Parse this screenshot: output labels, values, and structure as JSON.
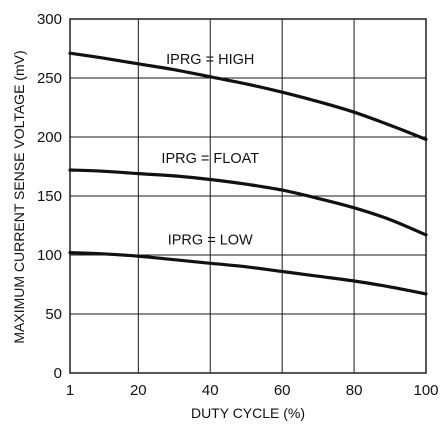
{
  "chart_data": {
    "type": "line",
    "xlabel": "DUTY CYCLE (%)",
    "ylabel": "MAXIMUM CURRENT SENSE VOLTAGE (mV)",
    "xlim": [
      1,
      100
    ],
    "ylim": [
      0,
      300
    ],
    "x_ticks": [
      1,
      20,
      40,
      60,
      80,
      100
    ],
    "y_ticks": [
      0,
      50,
      100,
      150,
      200,
      250,
      300
    ],
    "grid": true,
    "series": [
      {
        "name": "IPRG = HIGH",
        "x": [
          1,
          10,
          20,
          30,
          40,
          50,
          60,
          70,
          80,
          90,
          100
        ],
        "y": [
          271,
          267,
          262,
          257,
          251,
          245,
          238,
          230,
          221,
          210,
          198
        ]
      },
      {
        "name": "IPRG = FLOAT",
        "x": [
          1,
          10,
          20,
          30,
          40,
          50,
          60,
          70,
          80,
          90,
          100
        ],
        "y": [
          172,
          171,
          169,
          167,
          164,
          160,
          155,
          148,
          140,
          130,
          117
        ]
      },
      {
        "name": "IPRG = LOW",
        "x": [
          1,
          10,
          20,
          30,
          40,
          50,
          60,
          70,
          80,
          90,
          100
        ],
        "y": [
          102,
          101,
          99,
          96,
          93,
          90,
          86,
          82,
          78,
          73,
          67
        ]
      }
    ]
  }
}
